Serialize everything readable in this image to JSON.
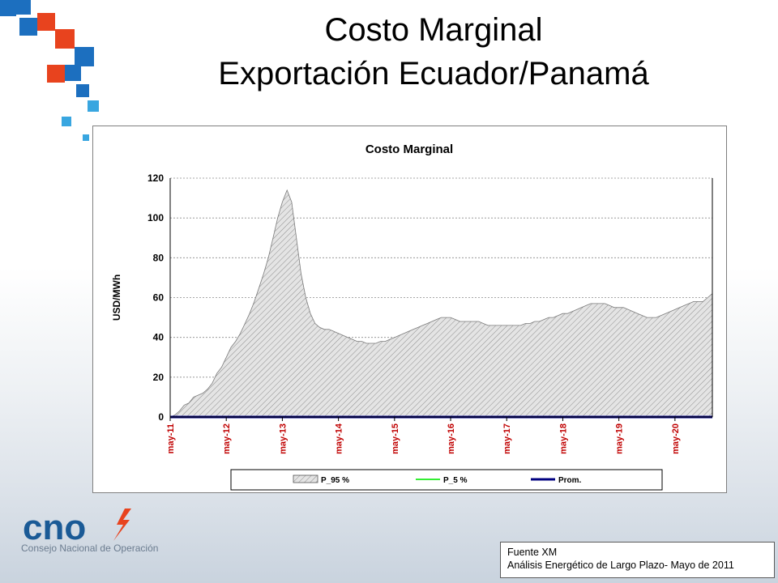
{
  "slide": {
    "title_line1": "Costo Marginal",
    "title_line2": "Exportación Ecuador/Panamá",
    "source_line1": "Fuente XM",
    "source_line2": "Análisis Energético de Largo Plazo- Mayo de 2011",
    "logo_text": "cno",
    "logo_subtitle": "Consejo Nacional de Operación",
    "logo_icon": "lightning-bolt-icon",
    "colors": {
      "accent_orange": "#e8431e",
      "accent_blue": "#1c6fbf",
      "logo_blue": "#1a5a96",
      "p95_fill": "#d4d4d4",
      "p5_line": "#33ee33",
      "prom_line": "#000080",
      "tick_label_red": "#c00000"
    }
  },
  "chart_data": {
    "type": "area",
    "title": "Costo Marginal",
    "ylabel": "USD/MWh",
    "xlabel": "",
    "ylim": [
      0,
      120
    ],
    "yticks": [
      0,
      20,
      40,
      60,
      80,
      100,
      120
    ],
    "grid": true,
    "legend_position": "bottom",
    "x_start": "may-11",
    "x_labels": [
      "may-11",
      "may-12",
      "may-13",
      "may-14",
      "may-15",
      "may-16",
      "may-17",
      "may-18",
      "may-19",
      "may-20"
    ],
    "x_label_months": [
      0,
      12,
      24,
      36,
      48,
      60,
      72,
      84,
      96,
      108
    ],
    "series": [
      {
        "name": "P_95 %",
        "style": "hatched-area",
        "values": [
          0,
          1,
          3,
          6,
          7,
          10,
          11,
          12,
          14,
          17,
          22,
          25,
          30,
          35,
          38,
          42,
          47,
          52,
          58,
          65,
          72,
          80,
          90,
          100,
          108,
          114,
          108,
          90,
          72,
          60,
          52,
          47,
          45,
          44,
          44,
          43,
          42,
          41,
          40,
          39,
          38,
          38,
          37,
          37,
          37,
          38,
          38,
          39,
          40,
          41,
          42,
          43,
          44,
          45,
          46,
          47,
          48,
          49,
          50,
          50,
          50,
          49,
          48,
          48,
          48,
          48,
          48,
          47,
          46,
          46,
          46,
          46,
          46,
          46,
          46,
          46,
          47,
          47,
          48,
          48,
          49,
          50,
          50,
          51,
          52,
          52,
          53,
          54,
          55,
          56,
          57,
          57,
          57,
          57,
          56,
          55,
          55,
          55,
          54,
          53,
          52,
          51,
          50,
          50,
          50,
          51,
          52,
          53,
          54,
          55,
          56,
          57,
          58,
          58,
          58,
          60,
          62
        ]
      },
      {
        "name": "P_5 %",
        "style": "green-line",
        "values": [
          0,
          0,
          0,
          0,
          0,
          0,
          0,
          0,
          0,
          0,
          0,
          0,
          0,
          0,
          0,
          0,
          0,
          0,
          0,
          0,
          0,
          0,
          0,
          0,
          0,
          0,
          0,
          0,
          0,
          0,
          0,
          0,
          0,
          0,
          0,
          0,
          0,
          0,
          0,
          0,
          0,
          0,
          0,
          0,
          0,
          0,
          0,
          0,
          0,
          0,
          0,
          0,
          0,
          0,
          0,
          0,
          0,
          0,
          0,
          0,
          0,
          0,
          0,
          0,
          0,
          0,
          0,
          0,
          0,
          0,
          0,
          0,
          0,
          0,
          0,
          0,
          0,
          0,
          0,
          0,
          0,
          0,
          0,
          0,
          0,
          0,
          0,
          0,
          0,
          0,
          0,
          0,
          0,
          0,
          0,
          0,
          0,
          0,
          0,
          0,
          0,
          0,
          0,
          0,
          0,
          0,
          0,
          0,
          0,
          0,
          0,
          0,
          0,
          0,
          0,
          0,
          0
        ]
      },
      {
        "name": "Prom.",
        "style": "navy-line",
        "values": [
          0,
          0,
          0,
          0,
          0,
          0,
          0,
          0,
          0,
          0,
          0,
          0,
          0,
          0,
          0,
          0,
          0,
          0,
          0,
          0,
          0,
          0,
          0,
          0,
          0,
          0,
          0,
          0,
          0,
          0,
          0,
          0,
          0,
          0,
          0,
          0,
          0,
          0,
          0,
          0,
          0,
          0,
          0,
          0,
          0,
          0,
          0,
          0,
          0,
          0,
          0,
          0,
          0,
          0,
          0,
          0,
          0,
          0,
          0,
          0,
          0,
          0,
          0,
          0,
          0,
          0,
          0,
          0,
          0,
          0,
          0,
          0,
          0,
          0,
          0,
          0,
          0,
          0,
          0,
          0,
          0,
          0,
          0,
          0,
          0,
          0,
          0,
          0,
          0,
          0,
          0,
          0,
          0,
          0,
          0,
          0,
          0,
          0,
          0,
          0,
          0,
          0,
          0,
          0,
          0,
          0,
          0,
          0,
          0,
          0,
          0,
          0,
          0,
          0,
          0,
          0,
          0
        ]
      }
    ]
  }
}
